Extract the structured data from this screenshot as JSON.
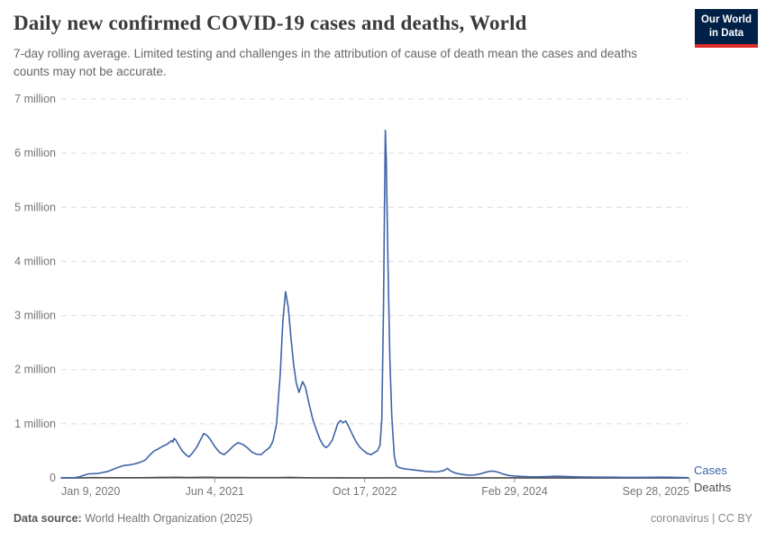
{
  "header": {
    "title": "Daily new confirmed COVID-19 cases and deaths, World",
    "subtitle": "7-day rolling average. Limited testing and challenges in the attribution of cause of death mean the cases and deaths counts may not be accurate.",
    "logo": {
      "line1": "Our World",
      "line2": "in Data",
      "bg_color": "#002147",
      "accent_color": "#dc2a26"
    }
  },
  "footer": {
    "source_label": "Data source:",
    "source_value": "World Health Organization (2025)",
    "rights": "coronavirus | CC BY"
  },
  "chart_data": {
    "type": "line",
    "title": "Daily new confirmed COVID-19 cases and deaths, World",
    "xlabel": "",
    "ylabel": "",
    "x_range": [
      "2020-01-09",
      "2025-09-28"
    ],
    "ylim": [
      0,
      7000000
    ],
    "grid": "horizontal-dashed",
    "legend_position": "right-end-labels",
    "y_ticks": [
      {
        "value": 0,
        "label": "0"
      },
      {
        "value": 1000000,
        "label": "1 million"
      },
      {
        "value": 2000000,
        "label": "2 million"
      },
      {
        "value": 3000000,
        "label": "3 million"
      },
      {
        "value": 4000000,
        "label": "4 million"
      },
      {
        "value": 5000000,
        "label": "5 million"
      },
      {
        "value": 6000000,
        "label": "6 million"
      },
      {
        "value": 7000000,
        "label": "7 million"
      }
    ],
    "x_ticks": [
      {
        "date": "2020-01-09",
        "label": "Jan 9, 2020",
        "align": "start",
        "tick": false
      },
      {
        "date": "2021-06-04",
        "label": "Jun 4, 2021",
        "align": "middle",
        "tick": true
      },
      {
        "date": "2022-10-17",
        "label": "Oct 17, 2022",
        "align": "middle",
        "tick": true
      },
      {
        "date": "2024-02-29",
        "label": "Feb 29, 2024",
        "align": "middle",
        "tick": true
      },
      {
        "date": "2025-09-28",
        "label": "Sep 28, 2025",
        "align": "end",
        "tick": true
      }
    ],
    "series": [
      {
        "name": "Cases",
        "color": "#3e64a8",
        "points": [
          [
            "2020-01-09",
            500
          ],
          [
            "2020-02-05",
            3000
          ],
          [
            "2020-02-20",
            2000
          ],
          [
            "2020-03-10",
            20000
          ],
          [
            "2020-03-25",
            50000
          ],
          [
            "2020-04-10",
            75000
          ],
          [
            "2020-04-25",
            78000
          ],
          [
            "2020-05-10",
            82000
          ],
          [
            "2020-05-26",
            100000
          ],
          [
            "2020-06-13",
            120000
          ],
          [
            "2020-07-01",
            160000
          ],
          [
            "2020-07-19",
            200000
          ],
          [
            "2020-08-06",
            230000
          ],
          [
            "2020-08-24",
            240000
          ],
          [
            "2020-09-11",
            260000
          ],
          [
            "2020-09-29",
            290000
          ],
          [
            "2020-10-15",
            330000
          ],
          [
            "2020-10-30",
            420000
          ],
          [
            "2020-11-14",
            500000
          ],
          [
            "2020-11-26",
            530000
          ],
          [
            "2020-12-11",
            580000
          ],
          [
            "2020-12-26",
            620000
          ],
          [
            "2021-01-05",
            660000
          ],
          [
            "2021-01-11",
            690000
          ],
          [
            "2021-01-15",
            660000
          ],
          [
            "2021-01-19",
            730000
          ],
          [
            "2021-01-25",
            700000
          ],
          [
            "2021-01-31",
            640000
          ],
          [
            "2021-02-15",
            500000
          ],
          [
            "2021-03-01",
            420000
          ],
          [
            "2021-03-10",
            390000
          ],
          [
            "2021-03-20",
            450000
          ],
          [
            "2021-04-04",
            560000
          ],
          [
            "2021-04-19",
            720000
          ],
          [
            "2021-04-28",
            820000
          ],
          [
            "2021-05-10",
            780000
          ],
          [
            "2021-05-19",
            720000
          ],
          [
            "2021-06-04",
            580000
          ],
          [
            "2021-06-20",
            470000
          ],
          [
            "2021-07-05",
            430000
          ],
          [
            "2021-07-20",
            500000
          ],
          [
            "2021-08-05",
            590000
          ],
          [
            "2021-08-20",
            650000
          ],
          [
            "2021-09-05",
            620000
          ],
          [
            "2021-09-20",
            560000
          ],
          [
            "2021-10-05",
            480000
          ],
          [
            "2021-10-20",
            440000
          ],
          [
            "2021-11-05",
            430000
          ],
          [
            "2021-11-20",
            500000
          ],
          [
            "2021-12-05",
            570000
          ],
          [
            "2021-12-15",
            680000
          ],
          [
            "2021-12-27",
            1000000
          ],
          [
            "2022-01-08",
            1900000
          ],
          [
            "2022-01-17",
            2900000
          ],
          [
            "2022-01-26",
            3440000
          ],
          [
            "2022-02-04",
            3150000
          ],
          [
            "2022-02-13",
            2600000
          ],
          [
            "2022-02-22",
            2100000
          ],
          [
            "2022-03-03",
            1750000
          ],
          [
            "2022-03-12",
            1580000
          ],
          [
            "2022-03-24",
            1780000
          ],
          [
            "2022-04-02",
            1680000
          ],
          [
            "2022-04-14",
            1380000
          ],
          [
            "2022-04-26",
            1100000
          ],
          [
            "2022-05-08",
            900000
          ],
          [
            "2022-05-20",
            720000
          ],
          [
            "2022-06-01",
            600000
          ],
          [
            "2022-06-10",
            560000
          ],
          [
            "2022-06-19",
            600000
          ],
          [
            "2022-07-01",
            700000
          ],
          [
            "2022-07-10",
            850000
          ],
          [
            "2022-07-19",
            1000000
          ],
          [
            "2022-07-28",
            1060000
          ],
          [
            "2022-08-06",
            1020000
          ],
          [
            "2022-08-15",
            1050000
          ],
          [
            "2022-08-27",
            920000
          ],
          [
            "2022-09-08",
            780000
          ],
          [
            "2022-09-20",
            650000
          ],
          [
            "2022-10-02",
            560000
          ],
          [
            "2022-10-14",
            500000
          ],
          [
            "2022-10-26",
            450000
          ],
          [
            "2022-11-07",
            430000
          ],
          [
            "2022-11-19",
            470000
          ],
          [
            "2022-11-28",
            500000
          ],
          [
            "2022-12-07",
            600000
          ],
          [
            "2022-12-13",
            1100000
          ],
          [
            "2022-12-19",
            3200000
          ],
          [
            "2022-12-22",
            4900000
          ],
          [
            "2022-12-25",
            6420000
          ],
          [
            "2022-12-28",
            5900000
          ],
          [
            "2023-01-03",
            3900000
          ],
          [
            "2023-01-09",
            2200000
          ],
          [
            "2023-01-15",
            1200000
          ],
          [
            "2023-01-18",
            900000
          ],
          [
            "2023-01-24",
            400000
          ],
          [
            "2023-01-31",
            220000
          ],
          [
            "2023-02-10",
            190000
          ],
          [
            "2023-02-24",
            170000
          ],
          [
            "2023-03-10",
            160000
          ],
          [
            "2023-03-25",
            150000
          ],
          [
            "2023-04-10",
            140000
          ],
          [
            "2023-04-25",
            130000
          ],
          [
            "2023-05-10",
            120000
          ],
          [
            "2023-05-25",
            115000
          ],
          [
            "2023-06-10",
            110000
          ],
          [
            "2023-06-25",
            120000
          ],
          [
            "2023-07-10",
            140000
          ],
          [
            "2023-07-20",
            175000
          ],
          [
            "2023-07-30",
            130000
          ],
          [
            "2023-08-15",
            90000
          ],
          [
            "2023-09-01",
            70000
          ],
          [
            "2023-09-20",
            55000
          ],
          [
            "2023-10-10",
            50000
          ],
          [
            "2023-10-25",
            60000
          ],
          [
            "2023-11-10",
            80000
          ],
          [
            "2023-11-25",
            105000
          ],
          [
            "2023-12-10",
            125000
          ],
          [
            "2023-12-25",
            120000
          ],
          [
            "2024-01-10",
            95000
          ],
          [
            "2024-01-25",
            65000
          ],
          [
            "2024-02-10",
            45000
          ],
          [
            "2024-02-29",
            35000
          ],
          [
            "2024-03-20",
            28000
          ],
          [
            "2024-04-15",
            22000
          ],
          [
            "2024-05-15",
            20000
          ],
          [
            "2024-06-15",
            25000
          ],
          [
            "2024-07-15",
            30000
          ],
          [
            "2024-08-10",
            28000
          ],
          [
            "2024-09-05",
            22000
          ],
          [
            "2024-10-01",
            18000
          ],
          [
            "2024-11-01",
            15000
          ],
          [
            "2024-12-01",
            13000
          ],
          [
            "2025-01-01",
            13000
          ],
          [
            "2025-02-01",
            12000
          ],
          [
            "2025-03-01",
            10000
          ],
          [
            "2025-04-01",
            10000
          ],
          [
            "2025-05-01",
            10000
          ],
          [
            "2025-06-01",
            12000
          ],
          [
            "2025-07-01",
            14000
          ],
          [
            "2025-08-01",
            12000
          ],
          [
            "2025-09-01",
            8000
          ],
          [
            "2025-09-28",
            6000
          ]
        ]
      },
      {
        "name": "Deaths",
        "color": "#4d4d4d",
        "points": [
          [
            "2020-01-09",
            20
          ],
          [
            "2020-02-15",
            100
          ],
          [
            "2020-03-15",
            800
          ],
          [
            "2020-04-01",
            5500
          ],
          [
            "2020-04-15",
            7500
          ],
          [
            "2020-05-01",
            6500
          ],
          [
            "2020-06-01",
            4800
          ],
          [
            "2020-07-01",
            5000
          ],
          [
            "2020-08-01",
            5800
          ],
          [
            "2020-09-01",
            5400
          ],
          [
            "2020-10-01",
            5500
          ],
          [
            "2020-11-01",
            7500
          ],
          [
            "2020-12-01",
            10500
          ],
          [
            "2021-01-01",
            11500
          ],
          [
            "2021-01-26",
            14000
          ],
          [
            "2021-02-15",
            10500
          ],
          [
            "2021-03-10",
            9000
          ],
          [
            "2021-04-01",
            10500
          ],
          [
            "2021-04-28",
            13000
          ],
          [
            "2021-05-20",
            12500
          ],
          [
            "2021-06-15",
            10000
          ],
          [
            "2021-07-10",
            8500
          ],
          [
            "2021-08-10",
            10000
          ],
          [
            "2021-09-01",
            9500
          ],
          [
            "2021-10-01",
            8000
          ],
          [
            "2021-11-01",
            7000
          ],
          [
            "2021-12-01",
            7000
          ],
          [
            "2022-01-01",
            6500
          ],
          [
            "2022-02-05",
            10500
          ],
          [
            "2022-03-01",
            8500
          ],
          [
            "2022-04-01",
            5000
          ],
          [
            "2022-05-01",
            3500
          ],
          [
            "2022-06-01",
            2500
          ],
          [
            "2022-07-15",
            2200
          ],
          [
            "2022-09-01",
            1800
          ],
          [
            "2022-10-15",
            1300
          ],
          [
            "2022-12-01",
            1500
          ],
          [
            "2023-01-10",
            3500
          ],
          [
            "2023-01-25",
            2800
          ],
          [
            "2023-02-15",
            1800
          ],
          [
            "2023-03-15",
            1200
          ],
          [
            "2023-05-01",
            700
          ],
          [
            "2023-07-01",
            400
          ],
          [
            "2023-09-01",
            300
          ],
          [
            "2023-12-01",
            350
          ],
          [
            "2024-02-01",
            300
          ],
          [
            "2024-06-01",
            150
          ],
          [
            "2024-12-01",
            100
          ],
          [
            "2025-06-01",
            60
          ],
          [
            "2025-09-28",
            50
          ]
        ]
      }
    ]
  }
}
